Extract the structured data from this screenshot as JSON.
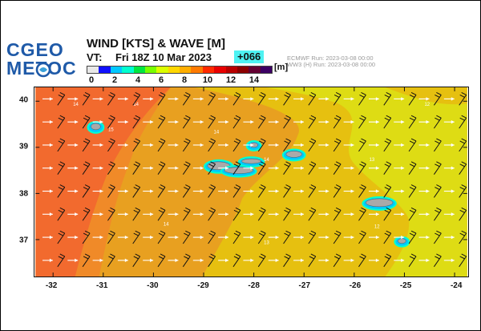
{
  "header": {
    "logo_line1": "CGEO",
    "logo_line2": "METOC",
    "title": "WIND [KTS] & WAVE [M]",
    "vt_label": "VT:",
    "vt_value": "Fri 18Z 10 Mar 2023",
    "lead_time": "+066",
    "run_info": [
      "ECMWF    Run: 2023-03-08 00:00",
      "WW3 (H) Run: 2023-03-08 00:00"
    ]
  },
  "legend": {
    "unit": "[m]",
    "labels": [
      "0",
      "2",
      "4",
      "6",
      "8",
      "10",
      "12",
      "14"
    ],
    "label_values": [
      0,
      2,
      4,
      6,
      8,
      10,
      12,
      14
    ],
    "colors": [
      "#e8e8e8",
      "#1010ff",
      "#00c8ff",
      "#00ffd0",
      "#00e640",
      "#78ff00",
      "#dcff00",
      "#ffd700",
      "#ffae00",
      "#ff7a00",
      "#ff2a00",
      "#e80000",
      "#b80000",
      "#8c0000",
      "#640032",
      "#3c0064"
    ]
  },
  "map": {
    "lat_labels": [
      "40",
      "39",
      "38",
      "37"
    ],
    "lat_values": [
      40,
      39,
      38,
      37
    ],
    "lon_labels": [
      "-32",
      "-31",
      "-30",
      "-29",
      "-28",
      "-27",
      "-26",
      "-25",
      "-24"
    ],
    "lon_values": [
      -32,
      -31,
      -30,
      -29,
      -28,
      -27,
      -26,
      -25,
      -24
    ],
    "extent": {
      "lon_min": -32.35,
      "lon_max": -23.75,
      "lat_min": 36.2,
      "lat_max": 40.3
    },
    "zone_colors": {
      "high": "#f26a2e",
      "mid_high": "#f08a28",
      "mid": "#e8a020",
      "low": "#e6c010",
      "lowest": "#dedc14",
      "land": "#a9a9a9"
    },
    "wave_labels": [
      "14",
      "15",
      "13",
      "12"
    ],
    "wind_arrow_color": "#ffffff",
    "barb_color": "#111111"
  }
}
